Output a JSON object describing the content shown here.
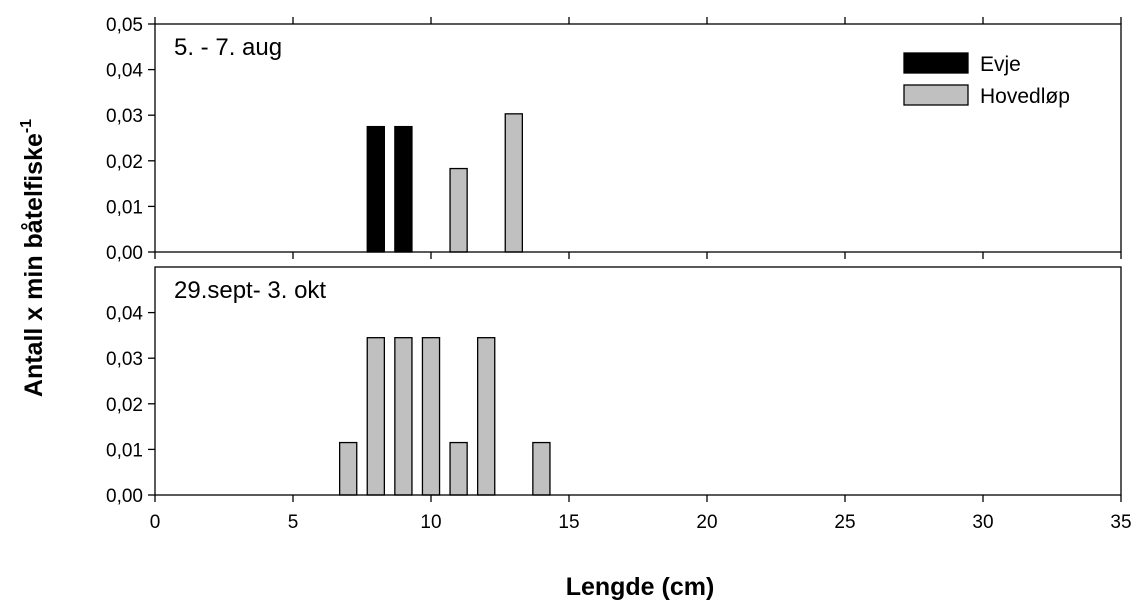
{
  "chart_data": {
    "type": "bar",
    "xlabel": "Lengde (cm)",
    "ylabel": "Antall x min båtelfiske",
    "ylabel_superscript": "-1",
    "xlim": [
      0,
      35
    ],
    "x_ticks": [
      "0",
      "5",
      "10",
      "15",
      "20",
      "25",
      "30",
      "35"
    ],
    "legend": {
      "position": "top-right",
      "entries": [
        {
          "name": "Evje",
          "color": "#000000"
        },
        {
          "name": "Hovedløp",
          "color": "#c0c0c0"
        }
      ]
    },
    "panels": [
      {
        "label": "5. - 7. aug",
        "ylim": [
          0,
          0.05
        ],
        "y_ticks": [
          "0,00",
          "0,01",
          "0,02",
          "0,03",
          "0,04",
          "0,05"
        ],
        "series": [
          {
            "name": "Evje",
            "color": "#000000",
            "points": [
              {
                "x": 8,
                "y": 0.0275
              },
              {
                "x": 9,
                "y": 0.0275
              }
            ]
          },
          {
            "name": "Hovedløp",
            "color": "#c0c0c0",
            "points": [
              {
                "x": 11,
                "y": 0.0183
              },
              {
                "x": 13,
                "y": 0.0303
              }
            ]
          }
        ]
      },
      {
        "label": "29.sept- 3. okt",
        "ylim": [
          0,
          0.05
        ],
        "y_ticks": [
          "0,00",
          "0,01",
          "0,02",
          "0,03",
          "0,04"
        ],
        "series": [
          {
            "name": "Hovedløp",
            "color": "#c0c0c0",
            "points": [
              {
                "x": 7,
                "y": 0.0115
              },
              {
                "x": 8,
                "y": 0.0345
              },
              {
                "x": 9,
                "y": 0.0345
              },
              {
                "x": 10,
                "y": 0.0345
              },
              {
                "x": 11,
                "y": 0.0115
              },
              {
                "x": 12,
                "y": 0.0345
              },
              {
                "x": 14,
                "y": 0.0115
              }
            ]
          }
        ]
      }
    ]
  }
}
